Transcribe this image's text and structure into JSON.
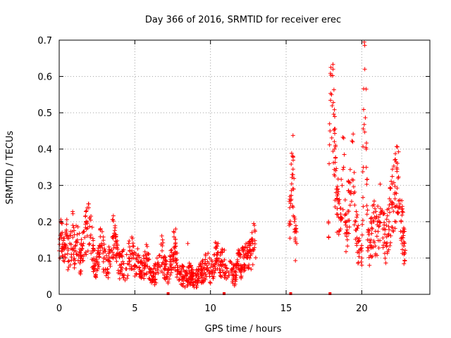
{
  "chart_data": {
    "type": "scatter",
    "title": "Day 366 of 2016, SRMTID for receiver erec",
    "xlabel": "GPS time / hours",
    "ylabel": "SRMTID / TECUs",
    "xlim": [
      0,
      24.5
    ],
    "ylim": [
      0,
      0.7
    ],
    "xticks": [
      0,
      5,
      10,
      15,
      20
    ],
    "xtick_labels": [
      "0",
      "5",
      "10",
      "15",
      "20"
    ],
    "yticks": [
      0,
      0.1,
      0.2,
      0.3,
      0.4,
      0.5,
      0.6,
      0.7
    ],
    "ytick_labels": [
      "0",
      "0.1",
      "0.2",
      "0.3",
      "0.4",
      "0.5",
      "0.6",
      "0.7"
    ],
    "grid": true,
    "marker": "plus",
    "color": "#ff0000",
    "series": [
      {
        "name": "SRMTID",
        "segments": [
          {
            "x_start": 0.0,
            "x_end": 13.0,
            "points": [
              [
                0.0,
                0.12
              ],
              [
                0.1,
                0.2
              ],
              [
                0.2,
                0.17
              ],
              [
                0.3,
                0.13
              ],
              [
                0.4,
                0.1
              ],
              [
                0.5,
                0.16
              ],
              [
                0.6,
                0.09
              ],
              [
                0.7,
                0.14
              ],
              [
                0.8,
                0.11
              ],
              [
                0.9,
                0.19
              ],
              [
                1.0,
                0.12
              ],
              [
                1.2,
                0.15
              ],
              [
                1.4,
                0.1
              ],
              [
                1.6,
                0.14
              ],
              [
                1.8,
                0.18
              ],
              [
                2.0,
                0.21
              ],
              [
                2.2,
                0.12
              ],
              [
                2.4,
                0.08
              ],
              [
                2.6,
                0.11
              ],
              [
                2.8,
                0.14
              ],
              [
                3.0,
                0.1
              ],
              [
                3.2,
                0.07
              ],
              [
                3.4,
                0.12
              ],
              [
                3.6,
                0.16
              ],
              [
                3.8,
                0.11
              ],
              [
                4.0,
                0.08
              ],
              [
                4.2,
                0.09
              ],
              [
                4.4,
                0.07
              ],
              [
                4.6,
                0.1
              ],
              [
                4.8,
                0.12
              ],
              [
                5.0,
                0.08
              ],
              [
                5.2,
                0.09
              ],
              [
                5.4,
                0.06
              ],
              [
                5.6,
                0.08
              ],
              [
                5.8,
                0.1
              ],
              [
                6.0,
                0.07
              ],
              [
                6.2,
                0.05
              ],
              [
                6.4,
                0.06
              ],
              [
                6.6,
                0.08
              ],
              [
                6.8,
                0.12
              ],
              [
                7.0,
                0.07
              ],
              [
                7.2,
                0.06
              ],
              [
                7.4,
                0.09
              ],
              [
                7.6,
                0.13
              ],
              [
                7.8,
                0.08
              ],
              [
                8.0,
                0.06
              ],
              [
                8.2,
                0.05
              ],
              [
                8.4,
                0.04
              ],
              [
                8.6,
                0.06
              ],
              [
                8.8,
                0.05
              ],
              [
                9.0,
                0.04
              ],
              [
                9.2,
                0.05
              ],
              [
                9.4,
                0.06
              ],
              [
                9.6,
                0.07
              ],
              [
                9.8,
                0.09
              ],
              [
                10.0,
                0.06
              ],
              [
                10.2,
                0.08
              ],
              [
                10.4,
                0.11
              ],
              [
                10.6,
                0.07
              ],
              [
                10.8,
                0.09
              ],
              [
                11.0,
                0.08
              ],
              [
                11.2,
                0.06
              ],
              [
                11.4,
                0.07
              ],
              [
                11.6,
                0.05
              ],
              [
                11.8,
                0.09
              ],
              [
                12.0,
                0.08
              ],
              [
                12.2,
                0.1
              ],
              [
                12.4,
                0.12
              ],
              [
                12.6,
                0.1
              ],
              [
                12.8,
                0.14
              ]
            ]
          },
          {
            "x_start": 15.2,
            "x_end": 15.7,
            "points": [
              [
                15.2,
                0.19
              ],
              [
                15.3,
                0.25
              ],
              [
                15.4,
                0.33
              ],
              [
                15.45,
                0.38
              ],
              [
                15.5,
                0.29
              ],
              [
                15.55,
                0.2
              ],
              [
                15.6,
                0.15
              ],
              [
                15.7,
                0.14
              ]
            ]
          },
          {
            "x_start": 17.8,
            "x_end": 22.9,
            "points": [
              [
                17.8,
                0.2
              ],
              [
                17.9,
                0.45
              ],
              [
                18.0,
                0.55
              ],
              [
                18.1,
                0.62
              ],
              [
                18.2,
                0.4
              ],
              [
                18.3,
                0.28
              ],
              [
                18.4,
                0.22
              ],
              [
                18.5,
                0.25
              ],
              [
                18.6,
                0.18
              ],
              [
                18.7,
                0.3
              ],
              [
                18.8,
                0.35
              ],
              [
                18.9,
                0.2
              ],
              [
                19.0,
                0.16
              ],
              [
                19.2,
                0.28
              ],
              [
                19.4,
                0.42
              ],
              [
                19.6,
                0.2
              ],
              [
                19.8,
                0.12
              ],
              [
                20.0,
                0.1
              ],
              [
                20.1,
                0.35
              ],
              [
                20.2,
                0.62
              ],
              [
                20.3,
                0.4
              ],
              [
                20.4,
                0.12
              ],
              [
                20.6,
                0.15
              ],
              [
                20.8,
                0.2
              ],
              [
                21.0,
                0.16
              ],
              [
                21.2,
                0.22
              ],
              [
                21.4,
                0.18
              ],
              [
                21.6,
                0.14
              ],
              [
                21.8,
                0.2
              ],
              [
                22.0,
                0.25
              ],
              [
                22.2,
                0.28
              ],
              [
                22.4,
                0.32
              ],
              [
                22.5,
                0.24
              ],
              [
                22.6,
                0.2
              ],
              [
                22.8,
                0.14
              ]
            ]
          }
        ],
        "zero_markers": [
          7.2,
          10.9,
          15.3,
          17.9
        ],
        "outliers": [
          [
            7.7,
            0.18
          ],
          [
            8.5,
            0.14
          ],
          [
            10.5,
            0.14
          ],
          [
            12.9,
            0.19
          ]
        ]
      }
    ]
  }
}
